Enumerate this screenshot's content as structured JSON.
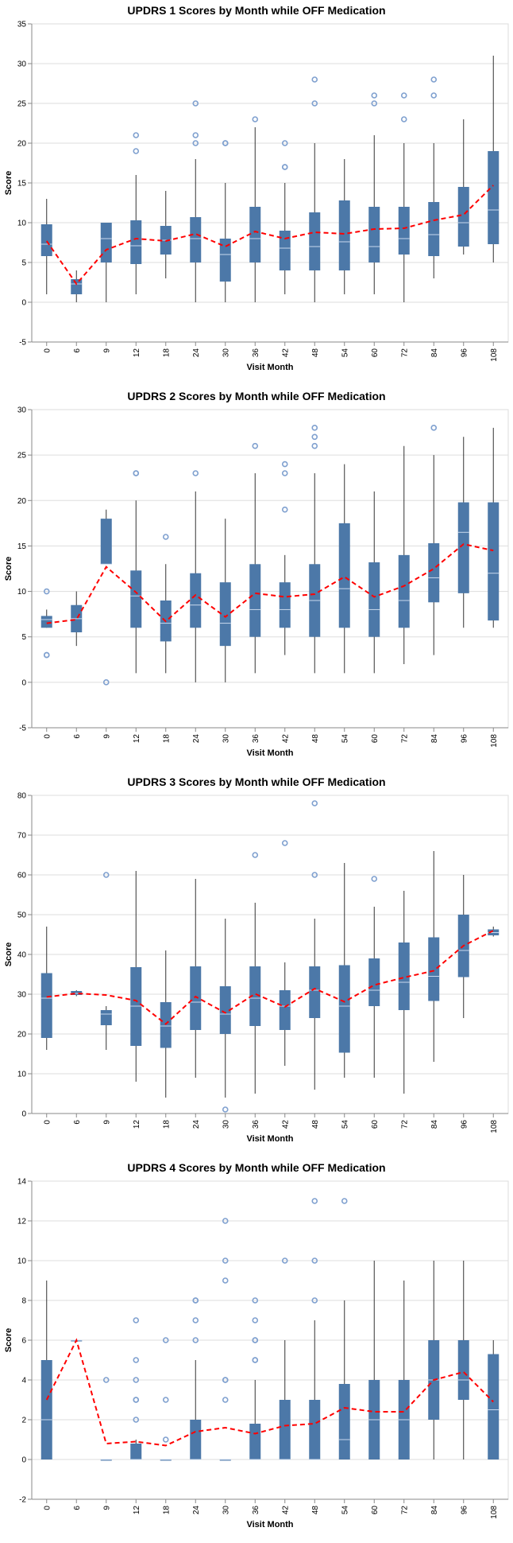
{
  "chart_data": [
    {
      "type": "box",
      "title": "UPDRS 1 Scores by Month while OFF Medication",
      "xlabel": "Visit Month",
      "ylabel": "Score",
      "ylim": [
        -5,
        35
      ],
      "yticks": [
        -5,
        0,
        5,
        10,
        15,
        20,
        25,
        30,
        35
      ],
      "grid": true,
      "colors": {
        "box": "#4c78a8",
        "median": "#c9d9ee",
        "whisker": "#333333",
        "outlier": "#7fa0cf",
        "mean_line": "#ff0000"
      },
      "categories": [
        "0",
        "6",
        "9",
        "12",
        "18",
        "24",
        "30",
        "36",
        "42",
        "48",
        "54",
        "60",
        "72",
        "84",
        "96",
        "108"
      ],
      "boxes": [
        {
          "min": 1,
          "q1": 5.8,
          "median": 7.3,
          "q3": 9.8,
          "max": 13,
          "outliers": []
        },
        {
          "min": 0,
          "q1": 1,
          "median": 2.3,
          "q3": 2.9,
          "max": 4,
          "outliers": []
        },
        {
          "min": 0,
          "q1": 5,
          "median": 8,
          "q3": 10,
          "max": 10,
          "outliers": []
        },
        {
          "min": 1,
          "q1": 4.8,
          "median": 7.1,
          "q3": 10.3,
          "max": 16,
          "outliers": [
            19,
            21
          ]
        },
        {
          "min": 3,
          "q1": 6,
          "median": 7.8,
          "q3": 9.6,
          "max": 14,
          "outliers": []
        },
        {
          "min": 0,
          "q1": 5,
          "median": 8,
          "q3": 10.7,
          "max": 18,
          "outliers": [
            20,
            21,
            25
          ]
        },
        {
          "min": 0,
          "q1": 2.6,
          "median": 6,
          "q3": 8,
          "max": 15,
          "outliers": [
            20,
            20
          ]
        },
        {
          "min": 0,
          "q1": 5,
          "median": 8,
          "q3": 12,
          "max": 22,
          "outliers": [
            23
          ]
        },
        {
          "min": 1,
          "q1": 4,
          "median": 6.8,
          "q3": 9,
          "max": 15,
          "outliers": [
            17,
            17,
            20
          ]
        },
        {
          "min": 0,
          "q1": 4,
          "median": 7,
          "q3": 11.3,
          "max": 20,
          "outliers": [
            25,
            28
          ]
        },
        {
          "min": 1,
          "q1": 4,
          "median": 7.6,
          "q3": 12.8,
          "max": 18,
          "outliers": []
        },
        {
          "min": 1,
          "q1": 5,
          "median": 7,
          "q3": 12,
          "max": 21,
          "outliers": [
            25,
            26
          ]
        },
        {
          "min": 0,
          "q1": 6,
          "median": 8,
          "q3": 12,
          "max": 20,
          "outliers": [
            23,
            26
          ]
        },
        {
          "min": 3,
          "q1": 5.8,
          "median": 8.5,
          "q3": 12.6,
          "max": 20,
          "outliers": [
            26,
            28
          ]
        },
        {
          "min": 6,
          "q1": 7,
          "median": 10,
          "q3": 14.5,
          "max": 23,
          "outliers": []
        },
        {
          "min": 5,
          "q1": 7.3,
          "median": 11.6,
          "q3": 19,
          "max": 31,
          "outliers": []
        }
      ],
      "mean": [
        7.7,
        2.3,
        6.6,
        8.0,
        7.7,
        8.6,
        7.0,
        8.9,
        8.0,
        8.8,
        8.6,
        9.2,
        9.3,
        10.3,
        11.0,
        14.7
      ]
    },
    {
      "type": "box",
      "title": "UPDRS 2 Scores by Month while OFF Medication",
      "xlabel": "Visit Month",
      "ylabel": "Score",
      "ylim": [
        -5,
        30
      ],
      "yticks": [
        -5,
        0,
        5,
        10,
        15,
        20,
        25,
        30
      ],
      "grid": true,
      "colors": {
        "box": "#4c78a8",
        "median": "#c9d9ee",
        "whisker": "#333333",
        "outlier": "#7fa0cf",
        "mean_line": "#ff0000"
      },
      "categories": [
        "0",
        "6",
        "9",
        "12",
        "18",
        "24",
        "30",
        "36",
        "42",
        "48",
        "54",
        "60",
        "72",
        "84",
        "96",
        "108"
      ],
      "boxes": [
        {
          "min": 6,
          "q1": 6,
          "median": 6.9,
          "q3": 7.3,
          "max": 8,
          "outliers": [
            3,
            3,
            10
          ]
        },
        {
          "min": 4,
          "q1": 5.5,
          "median": 7,
          "q3": 8.5,
          "max": 10,
          "outliers": []
        },
        {
          "min": 13,
          "q1": 13,
          "median": 13,
          "q3": 18,
          "max": 19,
          "outliers": [
            0
          ]
        },
        {
          "min": 1,
          "q1": 6,
          "median": 9.5,
          "q3": 12.3,
          "max": 20,
          "outliers": [
            23,
            23
          ]
        },
        {
          "min": 1,
          "q1": 4.5,
          "median": 6.5,
          "q3": 9,
          "max": 13,
          "outliers": [
            16
          ]
        },
        {
          "min": 0,
          "q1": 6,
          "median": 8.5,
          "q3": 12,
          "max": 21,
          "outliers": [
            23
          ]
        },
        {
          "min": 0,
          "q1": 4,
          "median": 6.5,
          "q3": 11,
          "max": 18,
          "outliers": []
        },
        {
          "min": 1,
          "q1": 5,
          "median": 8,
          "q3": 13,
          "max": 23,
          "outliers": [
            26
          ]
        },
        {
          "min": 3,
          "q1": 6,
          "median": 8,
          "q3": 11,
          "max": 14,
          "outliers": [
            19,
            23,
            24
          ]
        },
        {
          "min": 1,
          "q1": 5,
          "median": 9,
          "q3": 13,
          "max": 23,
          "outliers": [
            26,
            27,
            28
          ]
        },
        {
          "min": 1,
          "q1": 6,
          "median": 10.3,
          "q3": 17.5,
          "max": 24,
          "outliers": []
        },
        {
          "min": 1,
          "q1": 5,
          "median": 8,
          "q3": 13.2,
          "max": 21,
          "outliers": []
        },
        {
          "min": 2,
          "q1": 6,
          "median": 9,
          "q3": 14,
          "max": 26,
          "outliers": []
        },
        {
          "min": 3,
          "q1": 8.8,
          "median": 11.5,
          "q3": 15.3,
          "max": 25,
          "outliers": [
            28
          ]
        },
        {
          "min": 6,
          "q1": 9.8,
          "median": 16.5,
          "q3": 19.8,
          "max": 27,
          "outliers": []
        },
        {
          "min": 6,
          "q1": 6.8,
          "median": 12,
          "q3": 19.8,
          "max": 28,
          "outliers": []
        }
      ],
      "mean": [
        6.5,
        6.9,
        12.7,
        9.9,
        6.7,
        9.6,
        7.2,
        9.8,
        9.4,
        9.7,
        11.6,
        9.4,
        10.6,
        12.5,
        15.2,
        14.5
      ]
    },
    {
      "type": "box",
      "title": "UPDRS 3 Scores by Month while OFF Medication",
      "xlabel": "Visit Month",
      "ylabel": "Score",
      "ylim": [
        0,
        80
      ],
      "yticks": [
        0,
        10,
        20,
        30,
        40,
        50,
        60,
        70,
        80
      ],
      "grid": true,
      "colors": {
        "box": "#4c78a8",
        "median": "#c9d9ee",
        "whisker": "#333333",
        "outlier": "#7fa0cf",
        "mean_line": "#ff0000"
      },
      "categories": [
        "0",
        "6",
        "9",
        "12",
        "18",
        "24",
        "30",
        "36",
        "42",
        "48",
        "54",
        "60",
        "72",
        "84",
        "96",
        "108"
      ],
      "boxes": [
        {
          "min": 16,
          "q1": 19,
          "median": 29,
          "q3": 35.3,
          "max": 47,
          "outliers": []
        },
        {
          "min": 29.5,
          "q1": 29.8,
          "median": 30.2,
          "q3": 30.8,
          "max": 31,
          "outliers": []
        },
        {
          "min": 16,
          "q1": 22.2,
          "median": 25,
          "q3": 26,
          "max": 27,
          "outliers": [
            60
          ]
        },
        {
          "min": 8,
          "q1": 17,
          "median": 27,
          "q3": 36.8,
          "max": 61,
          "outliers": []
        },
        {
          "min": 4,
          "q1": 16.5,
          "median": 22,
          "q3": 28,
          "max": 41,
          "outliers": []
        },
        {
          "min": 9,
          "q1": 21,
          "median": 28,
          "q3": 37,
          "max": 59,
          "outliers": []
        },
        {
          "min": 4,
          "q1": 20,
          "median": 25,
          "q3": 32,
          "max": 49,
          "outliers": [
            1
          ]
        },
        {
          "min": 5,
          "q1": 22,
          "median": 29,
          "q3": 37,
          "max": 53,
          "outliers": [
            65
          ]
        },
        {
          "min": 12,
          "q1": 21,
          "median": 27,
          "q3": 31,
          "max": 38,
          "outliers": [
            68
          ]
        },
        {
          "min": 6,
          "q1": 24,
          "median": 31,
          "q3": 37,
          "max": 49,
          "outliers": [
            60,
            78
          ]
        },
        {
          "min": 9,
          "q1": 15.3,
          "median": 27,
          "q3": 37.3,
          "max": 63,
          "outliers": []
        },
        {
          "min": 9,
          "q1": 27,
          "median": 31,
          "q3": 39,
          "max": 52,
          "outliers": [
            59
          ]
        },
        {
          "min": 5,
          "q1": 26,
          "median": 33,
          "q3": 43,
          "max": 56,
          "outliers": []
        },
        {
          "min": 13,
          "q1": 28.3,
          "median": 34.5,
          "q3": 44.3,
          "max": 66,
          "outliers": []
        },
        {
          "min": 24,
          "q1": 34.3,
          "median": 41,
          "q3": 50,
          "max": 60,
          "outliers": []
        },
        {
          "min": 44.5,
          "q1": 44.8,
          "median": 45.5,
          "q3": 46.3,
          "max": 47,
          "outliers": []
        }
      ],
      "mean": [
        29.3,
        30.2,
        29.8,
        28.4,
        22.5,
        29.4,
        25.3,
        30.1,
        26.8,
        31.4,
        28.1,
        32.3,
        34.2,
        35.9,
        42.2,
        46.0
      ]
    },
    {
      "type": "box",
      "title": "UPDRS 4 Scores by Month while OFF Medication",
      "xlabel": "Visit Month",
      "ylabel": "Score",
      "ylim": [
        -2,
        14
      ],
      "yticks": [
        -2,
        0,
        2,
        4,
        6,
        8,
        10,
        12,
        14
      ],
      "grid": true,
      "colors": {
        "box": "#4c78a8",
        "median": "#c9d9ee",
        "whisker": "#333333",
        "outlier": "#7fa0cf",
        "mean_line": "#ff0000"
      },
      "categories": [
        "0",
        "6",
        "9",
        "12",
        "18",
        "24",
        "30",
        "36",
        "42",
        "48",
        "54",
        "60",
        "72",
        "84",
        "96",
        "108"
      ],
      "boxes": [
        {
          "min": 0,
          "q1": 0,
          "median": 2,
          "q3": 5,
          "max": 9,
          "outliers": []
        },
        {
          "min": 6,
          "q1": 6,
          "median": 6,
          "q3": 6,
          "max": 6,
          "outliers": []
        },
        {
          "min": 0,
          "q1": 0,
          "median": 0,
          "q3": 0,
          "max": 0,
          "outliers": [
            4
          ]
        },
        {
          "min": 0,
          "q1": 0,
          "median": 0,
          "q3": 0.8,
          "max": 1,
          "outliers": [
            2,
            3,
            3,
            4,
            5,
            7
          ]
        },
        {
          "min": 0,
          "q1": 0,
          "median": 0,
          "q3": 0,
          "max": 0,
          "outliers": [
            1,
            3,
            6
          ]
        },
        {
          "min": 0,
          "q1": 0,
          "median": 0,
          "q3": 2,
          "max": 5,
          "outliers": [
            6,
            7,
            8,
            8
          ]
        },
        {
          "min": 0,
          "q1": 0,
          "median": 0,
          "q3": 0,
          "max": 0,
          "outliers": [
            3,
            4,
            4,
            9,
            10,
            12
          ]
        },
        {
          "min": 0,
          "q1": 0,
          "median": 0,
          "q3": 1.8,
          "max": 4,
          "outliers": [
            5,
            5,
            6,
            6,
            7,
            8
          ]
        },
        {
          "min": 0,
          "q1": 0,
          "median": 0,
          "q3": 3,
          "max": 6,
          "outliers": [
            10
          ]
        },
        {
          "min": 0,
          "q1": 0,
          "median": 0,
          "q3": 3,
          "max": 7,
          "outliers": [
            8,
            10,
            13
          ]
        },
        {
          "min": 0,
          "q1": 0,
          "median": 1,
          "q3": 3.8,
          "max": 8,
          "outliers": [
            13
          ]
        },
        {
          "min": 0,
          "q1": 0,
          "median": 2,
          "q3": 4,
          "max": 10,
          "outliers": []
        },
        {
          "min": 0,
          "q1": 0,
          "median": 2,
          "q3": 4,
          "max": 9,
          "outliers": []
        },
        {
          "min": 0,
          "q1": 2,
          "median": 4,
          "q3": 6,
          "max": 10,
          "outliers": []
        },
        {
          "min": 0,
          "q1": 3,
          "median": 4,
          "q3": 6,
          "max": 10,
          "outliers": []
        },
        {
          "min": 0,
          "q1": 0,
          "median": 2.5,
          "q3": 5.3,
          "max": 6,
          "outliers": []
        }
      ],
      "mean": [
        3.0,
        6.0,
        0.8,
        0.9,
        0.7,
        1.4,
        1.6,
        1.3,
        1.7,
        1.8,
        2.6,
        2.4,
        2.4,
        4.0,
        4.4,
        2.9
      ]
    }
  ]
}
